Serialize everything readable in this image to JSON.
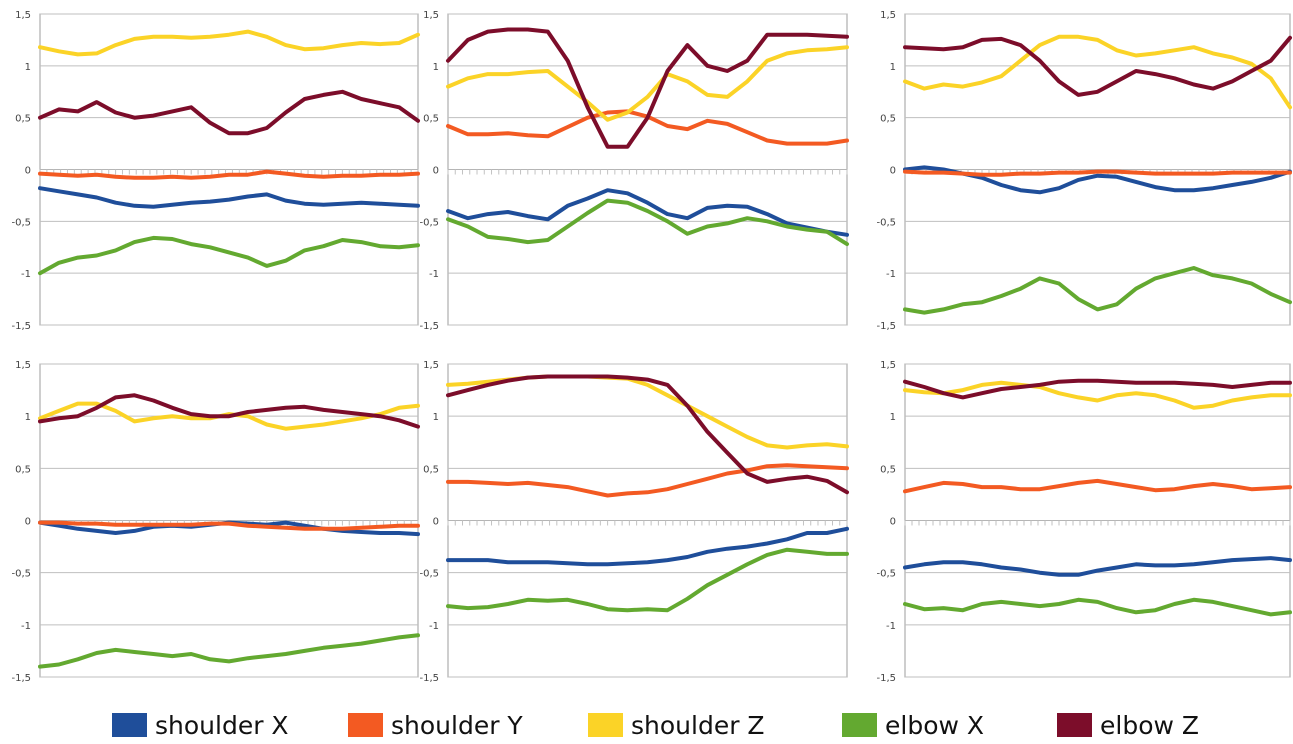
{
  "colors": {
    "shoulder_x": "#1f4e9a",
    "shoulder_y": "#f35a22",
    "shoulder_z": "#fbd327",
    "elbow_x": "#63a930",
    "elbow_z": "#7c0d2a",
    "grid": "#bfbfbf",
    "frame": "#9c9c9c",
    "tick": "#444444"
  },
  "legend": [
    {
      "key": "shoulder_x",
      "label": "shoulder X"
    },
    {
      "key": "shoulder_y",
      "label": "shoulder Y"
    },
    {
      "key": "shoulder_z",
      "label": "shoulder Z"
    },
    {
      "key": "elbow_x",
      "label": "elbow X"
    },
    {
      "key": "elbow_z",
      "label": "elbow Z"
    }
  ],
  "chart_data": [
    {
      "type": "line",
      "panel": "top-left",
      "ylim": [
        -1.5,
        1.5
      ],
      "ytick_labels": [
        "1,5",
        "1",
        "0,5",
        "0",
        "-0,5",
        "-1",
        "-1,5"
      ],
      "x": [
        0,
        1,
        2,
        3,
        4,
        5,
        6,
        7,
        8,
        9,
        10,
        11,
        12,
        13,
        14,
        15,
        16,
        17,
        18,
        19,
        20
      ],
      "series": [
        {
          "key": "shoulder_x",
          "values": [
            -0.18,
            -0.21,
            -0.24,
            -0.27,
            -0.32,
            -0.35,
            -0.36,
            -0.34,
            -0.32,
            -0.31,
            -0.29,
            -0.26,
            -0.24,
            -0.3,
            -0.33,
            -0.34,
            -0.33,
            -0.32,
            -0.33,
            -0.34,
            -0.35
          ]
        },
        {
          "key": "shoulder_y",
          "values": [
            -0.04,
            -0.05,
            -0.06,
            -0.05,
            -0.07,
            -0.08,
            -0.08,
            -0.07,
            -0.08,
            -0.07,
            -0.05,
            -0.05,
            -0.02,
            -0.04,
            -0.06,
            -0.07,
            -0.06,
            -0.06,
            -0.05,
            -0.05,
            -0.04
          ]
        },
        {
          "key": "shoulder_z",
          "values": [
            1.18,
            1.14,
            1.11,
            1.12,
            1.2,
            1.26,
            1.28,
            1.28,
            1.27,
            1.28,
            1.3,
            1.33,
            1.28,
            1.2,
            1.16,
            1.17,
            1.2,
            1.22,
            1.21,
            1.22,
            1.3
          ]
        },
        {
          "key": "elbow_x",
          "values": [
            -1.0,
            -0.9,
            -0.85,
            -0.83,
            -0.78,
            -0.7,
            -0.66,
            -0.67,
            -0.72,
            -0.75,
            -0.8,
            -0.85,
            -0.93,
            -0.88,
            -0.78,
            -0.74,
            -0.68,
            -0.7,
            -0.74,
            -0.75,
            -0.73
          ]
        },
        {
          "key": "elbow_z",
          "values": [
            0.5,
            0.58,
            0.56,
            0.65,
            0.55,
            0.5,
            0.52,
            0.56,
            0.6,
            0.45,
            0.35,
            0.35,
            0.4,
            0.55,
            0.68,
            0.72,
            0.75,
            0.68,
            0.64,
            0.6,
            0.47
          ]
        }
      ]
    },
    {
      "type": "line",
      "panel": "top-middle",
      "ylim": [
        -1.5,
        1.5
      ],
      "ytick_labels": [
        "1,5",
        "1",
        "0,5",
        "0",
        "-0,5",
        "-1",
        "-1,5"
      ],
      "x": [
        0,
        1,
        2,
        3,
        4,
        5,
        6,
        7,
        8,
        9,
        10,
        11,
        12,
        13,
        14,
        15,
        16,
        17,
        18,
        19,
        20
      ],
      "series": [
        {
          "key": "shoulder_x",
          "values": [
            -0.4,
            -0.47,
            -0.43,
            -0.41,
            -0.45,
            -0.48,
            -0.35,
            -0.28,
            -0.2,
            -0.23,
            -0.32,
            -0.43,
            -0.47,
            -0.37,
            -0.35,
            -0.36,
            -0.43,
            -0.52,
            -0.56,
            -0.6,
            -0.63
          ]
        },
        {
          "key": "shoulder_y",
          "values": [
            0.42,
            0.34,
            0.34,
            0.35,
            0.33,
            0.32,
            0.41,
            0.5,
            0.55,
            0.56,
            0.51,
            0.42,
            0.39,
            0.47,
            0.44,
            0.36,
            0.28,
            0.25,
            0.25,
            0.25,
            0.28
          ]
        },
        {
          "key": "shoulder_z",
          "values": [
            0.8,
            0.88,
            0.92,
            0.92,
            0.94,
            0.95,
            0.8,
            0.65,
            0.48,
            0.55,
            0.7,
            0.92,
            0.85,
            0.72,
            0.7,
            0.85,
            1.05,
            1.12,
            1.15,
            1.16,
            1.18
          ]
        },
        {
          "key": "elbow_x",
          "values": [
            -0.48,
            -0.55,
            -0.65,
            -0.67,
            -0.7,
            -0.68,
            -0.55,
            -0.42,
            -0.3,
            -0.32,
            -0.4,
            -0.5,
            -0.62,
            -0.55,
            -0.52,
            -0.47,
            -0.5,
            -0.55,
            -0.58,
            -0.6,
            -0.72
          ]
        },
        {
          "key": "elbow_z",
          "values": [
            1.05,
            1.25,
            1.33,
            1.35,
            1.35,
            1.33,
            1.05,
            0.6,
            0.22,
            0.22,
            0.5,
            0.95,
            1.2,
            1.0,
            0.95,
            1.05,
            1.3,
            1.3,
            1.3,
            1.29,
            1.28
          ]
        }
      ]
    },
    {
      "type": "line",
      "panel": "top-right",
      "ylim": [
        -1.5,
        1.5
      ],
      "ytick_labels": [
        "1,5",
        "1",
        "0,5",
        "0",
        "-0,5",
        "-1",
        "-1,5"
      ],
      "x": [
        0,
        1,
        2,
        3,
        4,
        5,
        6,
        7,
        8,
        9,
        10,
        11,
        12,
        13,
        14,
        15,
        16,
        17,
        18,
        19,
        20
      ],
      "series": [
        {
          "key": "shoulder_x",
          "values": [
            0.0,
            0.02,
            0.0,
            -0.04,
            -0.08,
            -0.15,
            -0.2,
            -0.22,
            -0.18,
            -0.1,
            -0.06,
            -0.07,
            -0.12,
            -0.17,
            -0.2,
            -0.2,
            -0.18,
            -0.15,
            -0.12,
            -0.08,
            -0.02
          ]
        },
        {
          "key": "shoulder_y",
          "values": [
            -0.02,
            -0.03,
            -0.03,
            -0.04,
            -0.05,
            -0.05,
            -0.04,
            -0.04,
            -0.03,
            -0.03,
            -0.02,
            -0.02,
            -0.03,
            -0.04,
            -0.04,
            -0.04,
            -0.04,
            -0.03,
            -0.03,
            -0.03,
            -0.03
          ]
        },
        {
          "key": "shoulder_z",
          "values": [
            0.85,
            0.78,
            0.82,
            0.8,
            0.84,
            0.9,
            1.05,
            1.2,
            1.28,
            1.28,
            1.25,
            1.15,
            1.1,
            1.12,
            1.15,
            1.18,
            1.12,
            1.08,
            1.02,
            0.88,
            0.6
          ]
        },
        {
          "key": "elbow_x",
          "values": [
            -1.35,
            -1.38,
            -1.35,
            -1.3,
            -1.28,
            -1.22,
            -1.15,
            -1.05,
            -1.1,
            -1.25,
            -1.35,
            -1.3,
            -1.15,
            -1.05,
            -1.0,
            -0.95,
            -1.02,
            -1.05,
            -1.1,
            -1.2,
            -1.28
          ]
        },
        {
          "key": "elbow_z",
          "values": [
            1.18,
            1.17,
            1.16,
            1.18,
            1.25,
            1.26,
            1.2,
            1.05,
            0.85,
            0.72,
            0.75,
            0.85,
            0.95,
            0.92,
            0.88,
            0.82,
            0.78,
            0.85,
            0.95,
            1.05,
            1.27
          ]
        }
      ]
    },
    {
      "type": "line",
      "panel": "bottom-left",
      "ylim": [
        -1.5,
        1.5
      ],
      "ytick_labels": [
        "1,5",
        "1",
        "0,5",
        "0",
        "-0,5",
        "-1",
        "-1,5"
      ],
      "x": [
        0,
        1,
        2,
        3,
        4,
        5,
        6,
        7,
        8,
        9,
        10,
        11,
        12,
        13,
        14,
        15,
        16,
        17,
        18,
        19,
        20
      ],
      "series": [
        {
          "key": "shoulder_x",
          "values": [
            -0.02,
            -0.05,
            -0.08,
            -0.1,
            -0.12,
            -0.1,
            -0.06,
            -0.05,
            -0.06,
            -0.04,
            -0.02,
            -0.03,
            -0.04,
            -0.02,
            -0.05,
            -0.08,
            -0.1,
            -0.11,
            -0.12,
            -0.12,
            -0.13
          ]
        },
        {
          "key": "shoulder_y",
          "values": [
            -0.02,
            -0.02,
            -0.03,
            -0.03,
            -0.04,
            -0.04,
            -0.04,
            -0.04,
            -0.04,
            -0.03,
            -0.03,
            -0.05,
            -0.06,
            -0.07,
            -0.08,
            -0.08,
            -0.08,
            -0.07,
            -0.06,
            -0.05,
            -0.05
          ]
        },
        {
          "key": "shoulder_z",
          "values": [
            0.98,
            1.05,
            1.12,
            1.12,
            1.05,
            0.95,
            0.98,
            1.0,
            0.98,
            0.98,
            1.02,
            1.0,
            0.92,
            0.88,
            0.9,
            0.92,
            0.95,
            0.98,
            1.02,
            1.08,
            1.1
          ]
        },
        {
          "key": "elbow_x",
          "values": [
            -1.4,
            -1.38,
            -1.33,
            -1.27,
            -1.24,
            -1.26,
            -1.28,
            -1.3,
            -1.28,
            -1.33,
            -1.35,
            -1.32,
            -1.3,
            -1.28,
            -1.25,
            -1.22,
            -1.2,
            -1.18,
            -1.15,
            -1.12,
            -1.1
          ]
        },
        {
          "key": "elbow_z",
          "values": [
            0.95,
            0.98,
            1.0,
            1.08,
            1.18,
            1.2,
            1.15,
            1.08,
            1.02,
            1.0,
            1.0,
            1.04,
            1.06,
            1.08,
            1.09,
            1.06,
            1.04,
            1.02,
            1.0,
            0.96,
            0.9
          ]
        }
      ]
    },
    {
      "type": "line",
      "panel": "bottom-middle",
      "ylim": [
        -1.5,
        1.5
      ],
      "ytick_labels": [
        "1,5",
        "1",
        "0,5",
        "0",
        "-0,5",
        "-1",
        "-1,5"
      ],
      "x": [
        0,
        1,
        2,
        3,
        4,
        5,
        6,
        7,
        8,
        9,
        10,
        11,
        12,
        13,
        14,
        15,
        16,
        17,
        18,
        19,
        20
      ],
      "series": [
        {
          "key": "shoulder_x",
          "values": [
            -0.38,
            -0.38,
            -0.38,
            -0.4,
            -0.4,
            -0.4,
            -0.41,
            -0.42,
            -0.42,
            -0.41,
            -0.4,
            -0.38,
            -0.35,
            -0.3,
            -0.27,
            -0.25,
            -0.22,
            -0.18,
            -0.12,
            -0.12,
            -0.08
          ]
        },
        {
          "key": "shoulder_y",
          "values": [
            0.37,
            0.37,
            0.36,
            0.35,
            0.36,
            0.34,
            0.32,
            0.28,
            0.24,
            0.26,
            0.27,
            0.3,
            0.35,
            0.4,
            0.45,
            0.48,
            0.52,
            0.53,
            0.52,
            0.51,
            0.5
          ]
        },
        {
          "key": "shoulder_z",
          "values": [
            1.3,
            1.31,
            1.33,
            1.35,
            1.37,
            1.38,
            1.38,
            1.38,
            1.37,
            1.36,
            1.3,
            1.2,
            1.1,
            1.0,
            0.9,
            0.8,
            0.72,
            0.7,
            0.72,
            0.73,
            0.71
          ]
        },
        {
          "key": "elbow_x",
          "values": [
            -0.82,
            -0.84,
            -0.83,
            -0.8,
            -0.76,
            -0.77,
            -0.76,
            -0.8,
            -0.85,
            -0.86,
            -0.85,
            -0.86,
            -0.75,
            -0.62,
            -0.52,
            -0.42,
            -0.33,
            -0.28,
            -0.3,
            -0.32,
            -0.32
          ]
        },
        {
          "key": "elbow_z",
          "values": [
            1.2,
            1.25,
            1.3,
            1.34,
            1.37,
            1.38,
            1.38,
            1.38,
            1.38,
            1.37,
            1.35,
            1.3,
            1.1,
            0.85,
            0.65,
            0.45,
            0.37,
            0.4,
            0.42,
            0.38,
            0.27
          ]
        }
      ]
    },
    {
      "type": "line",
      "panel": "bottom-right",
      "ylim": [
        -1.5,
        1.5
      ],
      "ytick_labels": [
        "1,5",
        "1",
        "0,5",
        "0",
        "-0,5",
        "-1",
        "-1,5"
      ],
      "x": [
        0,
        1,
        2,
        3,
        4,
        5,
        6,
        7,
        8,
        9,
        10,
        11,
        12,
        13,
        14,
        15,
        16,
        17,
        18,
        19,
        20
      ],
      "series": [
        {
          "key": "shoulder_x",
          "values": [
            -0.45,
            -0.42,
            -0.4,
            -0.4,
            -0.42,
            -0.45,
            -0.47,
            -0.5,
            -0.52,
            -0.52,
            -0.48,
            -0.45,
            -0.42,
            -0.43,
            -0.43,
            -0.42,
            -0.4,
            -0.38,
            -0.37,
            -0.36,
            -0.38
          ]
        },
        {
          "key": "shoulder_y",
          "values": [
            0.28,
            0.32,
            0.36,
            0.35,
            0.32,
            0.32,
            0.3,
            0.3,
            0.33,
            0.36,
            0.38,
            0.35,
            0.32,
            0.29,
            0.3,
            0.33,
            0.35,
            0.33,
            0.3,
            0.31,
            0.32
          ]
        },
        {
          "key": "shoulder_z",
          "values": [
            1.25,
            1.23,
            1.22,
            1.25,
            1.3,
            1.32,
            1.3,
            1.28,
            1.22,
            1.18,
            1.15,
            1.2,
            1.22,
            1.2,
            1.15,
            1.08,
            1.1,
            1.15,
            1.18,
            1.2,
            1.2
          ]
        },
        {
          "key": "elbow_x",
          "values": [
            -0.8,
            -0.85,
            -0.84,
            -0.86,
            -0.8,
            -0.78,
            -0.8,
            -0.82,
            -0.8,
            -0.76,
            -0.78,
            -0.84,
            -0.88,
            -0.86,
            -0.8,
            -0.76,
            -0.78,
            -0.82,
            -0.86,
            -0.9,
            -0.88
          ]
        },
        {
          "key": "elbow_z",
          "values": [
            1.33,
            1.28,
            1.22,
            1.18,
            1.22,
            1.26,
            1.28,
            1.3,
            1.33,
            1.34,
            1.34,
            1.33,
            1.32,
            1.32,
            1.32,
            1.31,
            1.3,
            1.28,
            1.3,
            1.32,
            1.32
          ]
        }
      ]
    }
  ]
}
